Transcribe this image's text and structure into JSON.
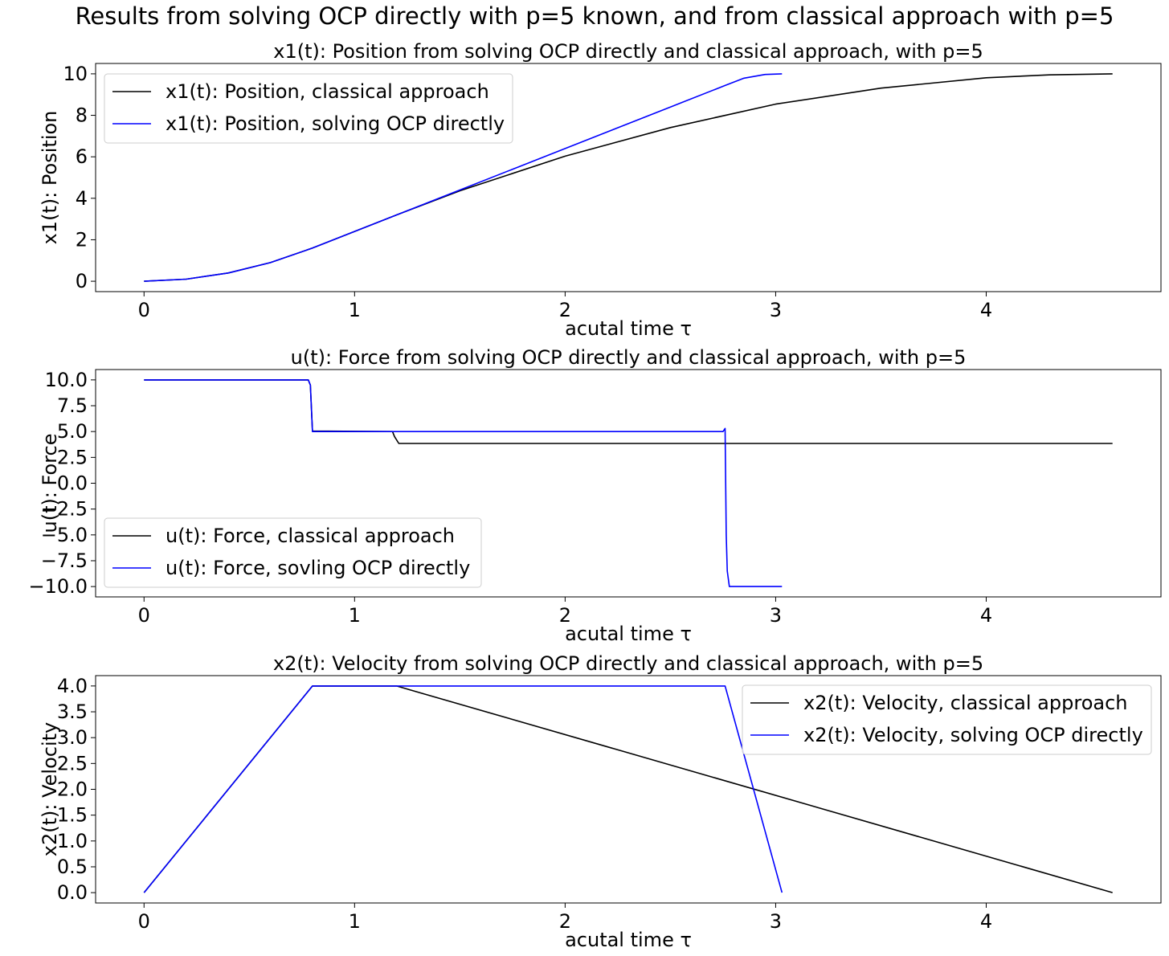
{
  "figure": {
    "suptitle": "Results from solving OCP directly with p=5 known, and from classical approach with p=5"
  },
  "colors": {
    "classical": "#000000",
    "direct": "#0000ff"
  },
  "chart_data": [
    {
      "type": "line",
      "title": "x1(t): Position from solving OCP directly and classical approach, with p=5",
      "xlabel": "acutal time τ",
      "ylabel": "x1(t): Position",
      "xlim": [
        -0.23,
        4.83
      ],
      "ylim": [
        -0.5,
        10.5
      ],
      "xticks": [
        "0",
        "1",
        "2",
        "3",
        "4"
      ],
      "yticks": [
        "0",
        "2",
        "4",
        "6",
        "8",
        "10"
      ],
      "grid": false,
      "legend_position": "upper left",
      "series": [
        {
          "name": "x1(t): Position, classical approach",
          "color": "#000000",
          "x": [
            0,
            0.2,
            0.4,
            0.6,
            0.8,
            1.0,
            1.2,
            1.5,
            2.0,
            2.5,
            3.0,
            3.5,
            4.0,
            4.3,
            4.6
          ],
          "y": [
            0,
            0.1,
            0.4,
            0.9,
            1.6,
            2.4,
            3.2,
            4.36,
            6.03,
            7.41,
            8.54,
            9.31,
            9.81,
            9.95,
            10.0
          ]
        },
        {
          "name": "x1(t): Position, solving OCP directly",
          "color": "#0000ff",
          "x": [
            0,
            0.2,
            0.4,
            0.6,
            0.8,
            1.0,
            1.2,
            1.5,
            2.0,
            2.5,
            2.76,
            2.85,
            2.95,
            3.03
          ],
          "y": [
            0,
            0.1,
            0.4,
            0.9,
            1.6,
            2.4,
            3.2,
            4.4,
            6.4,
            8.4,
            9.44,
            9.79,
            9.97,
            10.0
          ]
        }
      ]
    },
    {
      "type": "line",
      "title": "u(t): Force from solving OCP directly and classical approach, with p=5",
      "xlabel": "acutal time τ",
      "ylabel": "u(t): Force",
      "xlim": [
        -0.23,
        4.83
      ],
      "ylim": [
        -11.0,
        11.0
      ],
      "xticks": [
        "0",
        "1",
        "2",
        "3",
        "4"
      ],
      "yticks": [
        "−10.0",
        "−7.5",
        "−5.0",
        "−2.5",
        "0.0",
        "2.5",
        "5.0",
        "7.5",
        "10.0"
      ],
      "grid": false,
      "legend_position": "lower left",
      "series": [
        {
          "name": "u(t): Force, classical approach",
          "color": "#000000",
          "x": [
            0,
            0.78,
            0.79,
            0.8,
            1.18,
            1.19,
            1.21,
            4.6
          ],
          "y": [
            10,
            10,
            9.5,
            5.05,
            5.0,
            4.5,
            3.85,
            3.85
          ]
        },
        {
          "name": "u(t): Force, sovling OCP directly",
          "color": "#0000ff",
          "x": [
            0,
            0.78,
            0.79,
            0.8,
            2.75,
            2.76,
            2.765,
            2.77,
            2.78,
            3.03
          ],
          "y": [
            10,
            10,
            9.5,
            5.0,
            5.0,
            5.3,
            -5.0,
            -8.5,
            -10,
            -10
          ]
        }
      ]
    },
    {
      "type": "line",
      "title": "x2(t): Velocity from solving OCP directly and classical approach, with p=5",
      "xlabel": "acutal time τ",
      "ylabel": "x2(t): Velocity",
      "xlim": [
        -0.23,
        4.83
      ],
      "ylim": [
        -0.2,
        4.2
      ],
      "xticks": [
        "0",
        "1",
        "2",
        "3",
        "4"
      ],
      "yticks": [
        "0.0",
        "0.5",
        "1.0",
        "1.5",
        "2.0",
        "2.5",
        "3.0",
        "3.5",
        "4.0"
      ],
      "grid": false,
      "legend_position": "upper right",
      "series": [
        {
          "name": "x2(t): Velocity, classical approach",
          "color": "#000000",
          "x": [
            0,
            0.8,
            1.2,
            4.6
          ],
          "y": [
            0,
            4.0,
            4.0,
            0
          ]
        },
        {
          "name": "x2(t): Velocity, solving OCP directly",
          "color": "#0000ff",
          "x": [
            0,
            0.8,
            2.76,
            3.03
          ],
          "y": [
            0,
            4.0,
            4.0,
            0
          ]
        }
      ]
    }
  ]
}
